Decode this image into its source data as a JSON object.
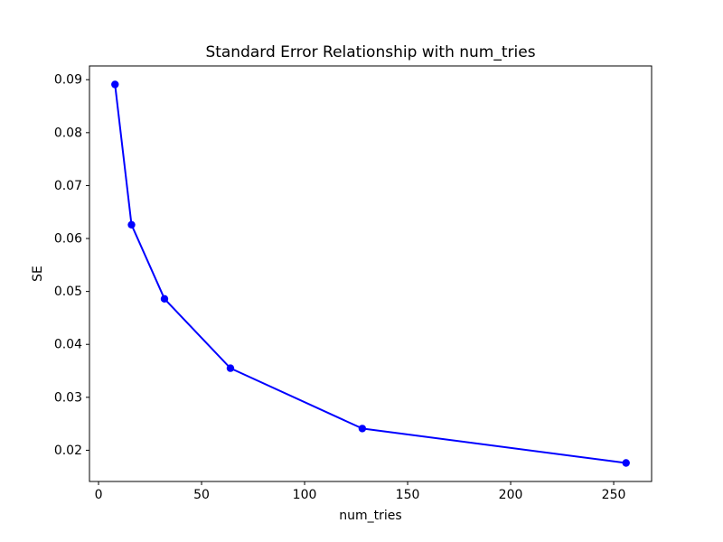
{
  "figure": {
    "background_color": "#ffffff"
  },
  "chart_data": {
    "type": "line",
    "title": "Standard Error Relationship with num_tries",
    "xlabel": "num_tries",
    "ylabel": "SE",
    "x": [
      8,
      16,
      32,
      64,
      128,
      256
    ],
    "y": [
      0.0891,
      0.0626,
      0.0486,
      0.0355,
      0.0241,
      0.0176
    ],
    "line_color": "#0000ff",
    "marker": "circle",
    "marker_color": "#0000ff",
    "xlim": [
      -4.4,
      268.4
    ],
    "ylim": [
      0.0141,
      0.0926
    ],
    "x_ticks": [
      0,
      50,
      100,
      150,
      200,
      250
    ],
    "y_ticks": [
      0.02,
      0.03,
      0.04,
      0.05,
      0.06,
      0.07,
      0.08,
      0.09
    ],
    "y_tick_decimals": 2,
    "grid": false,
    "legend": null
  }
}
